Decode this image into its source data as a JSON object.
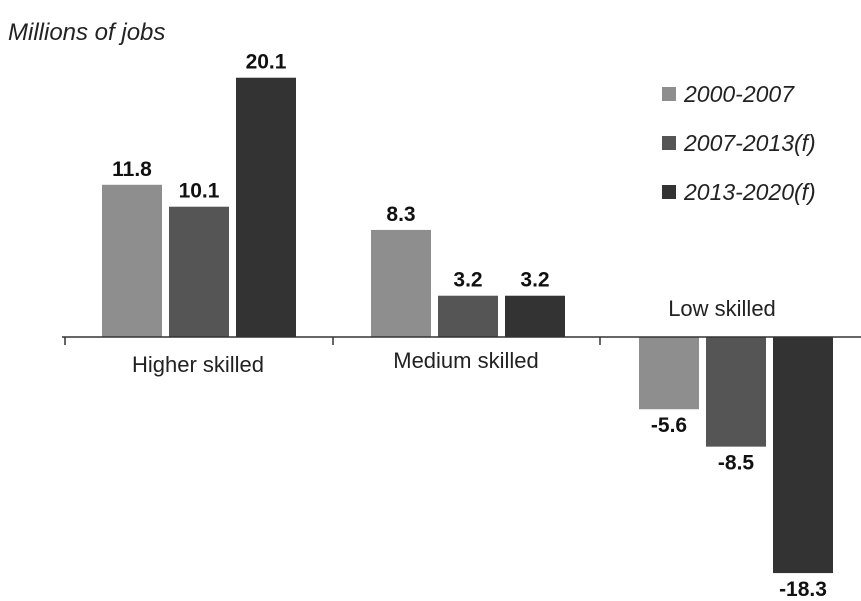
{
  "chart_data": {
    "type": "bar",
    "ylabel": "Millions of jobs",
    "categories": [
      "Higher skilled",
      "Medium skilled",
      "Low skilled"
    ],
    "series": [
      {
        "name": "2000-2007",
        "color": "#8e8e8e",
        "values": [
          11.8,
          8.3,
          -5.6
        ]
      },
      {
        "name": "2007-2013(f)",
        "color": "#555555",
        "values": [
          10.1,
          3.2,
          -8.5
        ]
      },
      {
        "name": "2013-2020(f)",
        "color": "#333333",
        "values": [
          20.1,
          3.2,
          -18.3
        ]
      }
    ],
    "value_labels": [
      [
        "11.8",
        "8.3",
        "-5.6"
      ],
      [
        "10.1",
        "3.2",
        "-8.5"
      ],
      [
        "20.1",
        "3.2",
        "-18.3"
      ]
    ],
    "ylim": [
      -19.5,
      21
    ],
    "legend_position": "top-right"
  }
}
